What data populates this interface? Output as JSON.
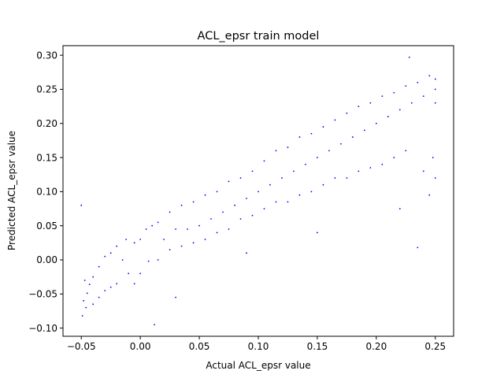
{
  "chart_data": {
    "type": "scatter",
    "title": "ACL_epsr train model",
    "xlabel": "Actual ACL_epsr value",
    "ylabel": "Predicted ACL_epsr value",
    "xlim": [
      -0.0655,
      0.2655
    ],
    "ylim": [
      -0.112,
      0.314
    ],
    "x_ticks": [
      -0.05,
      0.0,
      0.05,
      0.1,
      0.15,
      0.2,
      0.25
    ],
    "x_tick_labels": [
      "−0.05",
      "0.00",
      "0.05",
      "0.10",
      "0.15",
      "0.20",
      "0.25"
    ],
    "y_ticks": [
      -0.1,
      -0.05,
      0.0,
      0.05,
      0.1,
      0.15,
      0.2,
      0.25,
      0.3
    ],
    "y_tick_labels": [
      "−0.10",
      "−0.05",
      "0.00",
      "0.05",
      "0.10",
      "0.15",
      "0.20",
      "0.25",
      "0.30"
    ],
    "grid": false,
    "legend": "none",
    "marker_color": "#0000ff",
    "series": [
      {
        "points": [
          [
            -0.049,
            -0.082
          ],
          [
            -0.05,
            0.08
          ],
          [
            -0.048,
            -0.06
          ],
          [
            -0.047,
            -0.03
          ],
          [
            -0.046,
            -0.07
          ],
          [
            -0.045,
            -0.049
          ],
          [
            -0.043,
            -0.036
          ],
          [
            -0.04,
            -0.025
          ],
          [
            -0.04,
            -0.065
          ],
          [
            -0.035,
            -0.01
          ],
          [
            -0.035,
            -0.055
          ],
          [
            -0.03,
            0.005
          ],
          [
            -0.03,
            -0.045
          ],
          [
            -0.025,
            0.01
          ],
          [
            -0.025,
            -0.04
          ],
          [
            -0.02,
            0.02
          ],
          [
            -0.02,
            -0.035
          ],
          [
            -0.015,
            0.0
          ],
          [
            -0.012,
            0.03
          ],
          [
            -0.01,
            -0.02
          ],
          [
            -0.005,
            0.025
          ],
          [
            -0.005,
            -0.035
          ],
          [
            0.0,
            0.03
          ],
          [
            0.0,
            -0.02
          ],
          [
            0.005,
            0.045
          ],
          [
            0.007,
            -0.002
          ],
          [
            0.01,
            0.05
          ],
          [
            0.012,
            -0.095
          ],
          [
            0.015,
            0.055
          ],
          [
            0.015,
            0.0
          ],
          [
            0.02,
            0.03
          ],
          [
            0.025,
            0.07
          ],
          [
            0.025,
            0.015
          ],
          [
            0.03,
            -0.055
          ],
          [
            0.03,
            0.045
          ],
          [
            0.035,
            0.08
          ],
          [
            0.035,
            0.02
          ],
          [
            0.04,
            0.045
          ],
          [
            0.045,
            0.085
          ],
          [
            0.045,
            0.025
          ],
          [
            0.05,
            0.05
          ],
          [
            0.055,
            0.095
          ],
          [
            0.055,
            0.03
          ],
          [
            0.06,
            0.06
          ],
          [
            0.065,
            0.1
          ],
          [
            0.065,
            0.04
          ],
          [
            0.07,
            0.07
          ],
          [
            0.075,
            0.115
          ],
          [
            0.075,
            0.045
          ],
          [
            0.08,
            0.08
          ],
          [
            0.085,
            0.12
          ],
          [
            0.085,
            0.06
          ],
          [
            0.09,
            0.09
          ],
          [
            0.09,
            0.01
          ],
          [
            0.095,
            0.13
          ],
          [
            0.095,
            0.065
          ],
          [
            0.1,
            0.1
          ],
          [
            0.105,
            0.145
          ],
          [
            0.105,
            0.075
          ],
          [
            0.11,
            0.11
          ],
          [
            0.115,
            0.16
          ],
          [
            0.115,
            0.085
          ],
          [
            0.12,
            0.12
          ],
          [
            0.125,
            0.165
          ],
          [
            0.125,
            0.085
          ],
          [
            0.13,
            0.13
          ],
          [
            0.135,
            0.18
          ],
          [
            0.135,
            0.095
          ],
          [
            0.14,
            0.14
          ],
          [
            0.145,
            0.185
          ],
          [
            0.145,
            0.1
          ],
          [
            0.15,
            0.15
          ],
          [
            0.15,
            0.04
          ],
          [
            0.155,
            0.195
          ],
          [
            0.155,
            0.11
          ],
          [
            0.16,
            0.16
          ],
          [
            0.165,
            0.205
          ],
          [
            0.165,
            0.12
          ],
          [
            0.17,
            0.17
          ],
          [
            0.175,
            0.215
          ],
          [
            0.175,
            0.12
          ],
          [
            0.18,
            0.18
          ],
          [
            0.185,
            0.225
          ],
          [
            0.185,
            0.13
          ],
          [
            0.19,
            0.19
          ],
          [
            0.195,
            0.23
          ],
          [
            0.195,
            0.135
          ],
          [
            0.2,
            0.2
          ],
          [
            0.205,
            0.24
          ],
          [
            0.205,
            0.14
          ],
          [
            0.21,
            0.21
          ],
          [
            0.215,
            0.245
          ],
          [
            0.215,
            0.15
          ],
          [
            0.22,
            0.22
          ],
          [
            0.22,
            0.075
          ],
          [
            0.225,
            0.255
          ],
          [
            0.225,
            0.16
          ],
          [
            0.228,
            0.297
          ],
          [
            0.23,
            0.23
          ],
          [
            0.235,
            0.26
          ],
          [
            0.235,
            0.018
          ],
          [
            0.24,
            0.24
          ],
          [
            0.24,
            0.13
          ],
          [
            0.245,
            0.27
          ],
          [
            0.245,
            0.095
          ],
          [
            0.248,
            0.15
          ],
          [
            0.25,
            0.25
          ],
          [
            0.25,
            0.12
          ],
          [
            0.25,
            0.265
          ],
          [
            0.25,
            0.23
          ]
        ]
      }
    ]
  }
}
